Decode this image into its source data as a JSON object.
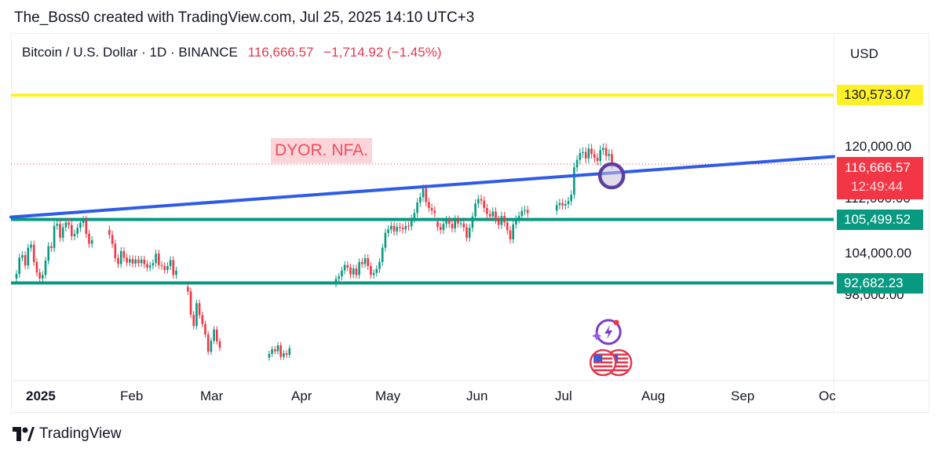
{
  "header": {
    "created_line": "The_Boss0 created with TradingView.com, Jul 25, 2025 14:10 UTC+3"
  },
  "symbol": {
    "name": "Bitcoin / U.S. Dollar · 1D · BINANCE",
    "price": "116,666.57",
    "change": "−1,714.92 (−1.45%)"
  },
  "currency": "USD",
  "annotation": "DYOR. NFA.",
  "price_badge": {
    "price": "116,666.57",
    "countdown": "12:49:44"
  },
  "level_badges": [
    {
      "label": "130,573.07",
      "value": 130573.07,
      "bg": "#fff027",
      "fg": "#131722"
    },
    {
      "label": "105,499.52",
      "value": 105499.52,
      "bg": "#089981",
      "fg": "#ffffff"
    },
    {
      "label": "92,682.23",
      "value": 92682.23,
      "bg": "#089981",
      "fg": "#ffffff"
    }
  ],
  "colors": {
    "up": "#089981",
    "down": "#f23645",
    "trendline": "#2e5ce6",
    "resistance": "#fff027",
    "support": "#089981",
    "marker_ring": "#5b3f9e"
  },
  "icons": [
    "lightning-event-icon",
    "us-flag-icon"
  ],
  "footer": {
    "brand": "TradingView"
  },
  "chart_data": {
    "type": "candlestick",
    "y_axis": {
      "ticks": [
        {
          "label": "120,000.00",
          "value": 120000
        },
        {
          "label": "112,000.00",
          "value": 112000
        },
        {
          "label": "104,000.00",
          "value": 104000
        },
        {
          "label": "98,000.00",
          "value": 98000
        }
      ]
    },
    "x_axis": {
      "ticks": [
        "2025",
        "Feb",
        "Mar",
        "Apr",
        "May",
        "Jun",
        "Jul",
        "Aug",
        "Sep",
        "Oc"
      ]
    },
    "horizontal_levels": [
      130573.07,
      105499.52,
      92682.23
    ],
    "trendline": [
      {
        "date": "2024-12-31",
        "value": 106000
      },
      {
        "date": "2025-10-01",
        "value": 117800
      }
    ],
    "current_price": 116666.57,
    "series": [
      {
        "segment": "Jan",
        "closes": [
          94500,
          97800,
          98300,
          96200,
          99800,
          100400,
          96900,
          94800,
          93600,
          94300,
          97200,
          100100,
          99700,
          104200,
          104600,
          101800,
          103900,
          104900,
          104400,
          102100,
          102600,
          103800,
          104800,
          105400,
          102600,
          100600,
          101300
        ]
      },
      {
        "segment": "Feb",
        "closes": [
          102400,
          100600,
          97700,
          96500,
          99100,
          97800,
          96800,
          97500,
          96600,
          97400,
          96700,
          97400,
          96500,
          95800,
          96200,
          96700,
          98600,
          96300,
          96100,
          95300,
          96100,
          97300,
          94300,
          95200
        ]
      },
      {
        "segment": "Mar",
        "closes": [
          91000,
          86300,
          84000,
          88600,
          86200,
          84400,
          82300,
          78800,
          81000,
          83300,
          80900,
          79600
        ]
      },
      {
        "segment": "Apr",
        "closes": [
          78400,
          79300,
          78900,
          80100,
          77800,
          78500,
          78200,
          79500
        ]
      },
      {
        "segment": "Apr-May",
        "closes": [
          93500,
          94000,
          95200,
          96300,
          95800,
          94400,
          95600,
          94300,
          96900,
          96500,
          97700,
          96100,
          94300,
          94700,
          95500,
          96900,
          99800,
          102800,
          103500,
          104200,
          103100,
          104000,
          103800,
          103500,
          104200,
          104100,
          105600,
          106800,
          108900,
          110000,
          111700,
          109000,
          107800,
          107300,
          106800
        ]
      },
      {
        "segment": "Jun",
        "closes": [
          104000,
          103400,
          104600,
          105400,
          104600,
          103700,
          105500,
          104700,
          104700,
          103900,
          101800,
          103800,
          106100,
          108700,
          109600,
          109300,
          107800,
          106600,
          106100,
          107100,
          105400,
          104400,
          106200,
          104900,
          103300,
          101500,
          104500,
          105500,
          106200,
          107200,
          107400,
          106800
        ]
      },
      {
        "segment": "Jul",
        "closes": [
          108400,
          108800,
          108300,
          108600,
          109200,
          110500,
          116000,
          117500,
          118900,
          119100,
          117800,
          119800,
          118700,
          117900,
          117300,
          119500,
          119900,
          118300,
          118700,
          116666.57
        ]
      }
    ]
  }
}
